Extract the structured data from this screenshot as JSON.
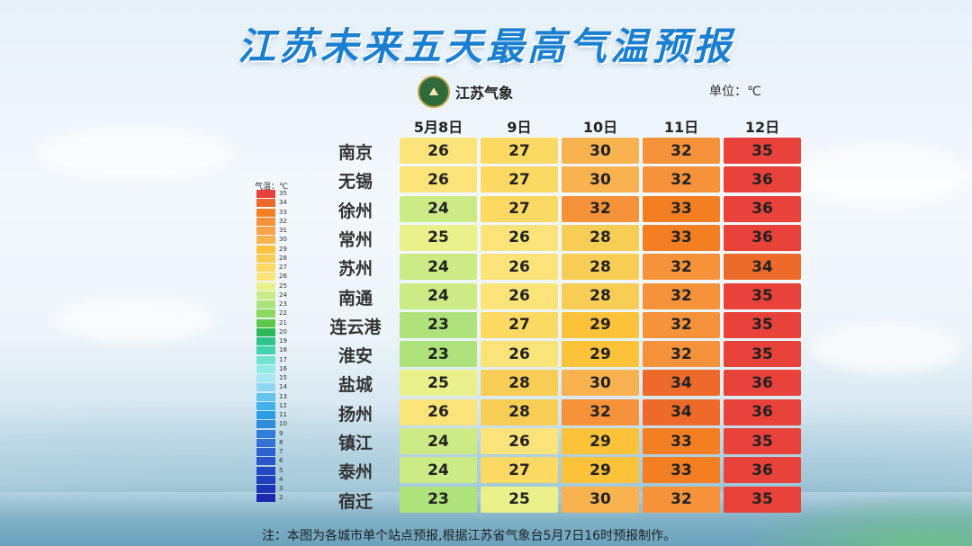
{
  "title": "江苏未来五天最高气温预报",
  "logo": {
    "text": "江苏气象",
    "icon": "weather-bureau-emblem-icon"
  },
  "unit": "单位：℃",
  "columns": [
    "5月8日",
    "9日",
    "10日",
    "11日",
    "12日"
  ],
  "rows": [
    {
      "city": "南京",
      "temps": [
        26,
        27,
        30,
        32,
        35
      ]
    },
    {
      "city": "无锡",
      "temps": [
        26,
        27,
        30,
        32,
        36
      ]
    },
    {
      "city": "徐州",
      "temps": [
        24,
        27,
        32,
        33,
        36
      ]
    },
    {
      "city": "常州",
      "temps": [
        25,
        26,
        28,
        33,
        36
      ]
    },
    {
      "city": "苏州",
      "temps": [
        24,
        26,
        28,
        32,
        34
      ]
    },
    {
      "city": "南通",
      "temps": [
        24,
        26,
        28,
        32,
        35
      ]
    },
    {
      "city": "连云港",
      "temps": [
        23,
        27,
        29,
        32,
        35
      ]
    },
    {
      "city": "淮安",
      "temps": [
        23,
        26,
        29,
        32,
        35
      ]
    },
    {
      "city": "盐城",
      "temps": [
        25,
        28,
        30,
        34,
        36
      ]
    },
    {
      "city": "扬州",
      "temps": [
        26,
        28,
        32,
        34,
        36
      ]
    },
    {
      "city": "镇江",
      "temps": [
        24,
        26,
        29,
        33,
        35
      ]
    },
    {
      "city": "泰州",
      "temps": [
        24,
        27,
        29,
        33,
        36
      ]
    },
    {
      "city": "宿迁",
      "temps": [
        23,
        25,
        30,
        32,
        35
      ]
    }
  ],
  "legend": {
    "title": "气温：℃",
    "items": [
      {
        "label": "35",
        "color": "#e8423a"
      },
      {
        "label": "34",
        "color": "#ee6a2a"
      },
      {
        "label": "33",
        "color": "#f47e22"
      },
      {
        "label": "32",
        "color": "#f5923a"
      },
      {
        "label": "31",
        "color": "#f7a34a"
      },
      {
        "label": "30",
        "color": "#f8b350"
      },
      {
        "label": "29",
        "color": "#fbc23a"
      },
      {
        "label": "28",
        "color": "#f8cd55"
      },
      {
        "label": "27",
        "color": "#fbd962"
      },
      {
        "label": "26",
        "color": "#fae47a"
      },
      {
        "label": "25",
        "color": "#eaf08a"
      },
      {
        "label": "24",
        "color": "#cdeb85"
      },
      {
        "label": "23",
        "color": "#ade37a"
      },
      {
        "label": "22",
        "color": "#8ed860"
      },
      {
        "label": "21",
        "color": "#5cc84a"
      },
      {
        "label": "20",
        "color": "#2fb85a"
      },
      {
        "label": "19",
        "color": "#2ec48a"
      },
      {
        "label": "18",
        "color": "#3fd3b0"
      },
      {
        "label": "17",
        "color": "#6fe3d0"
      },
      {
        "label": "16",
        "color": "#93ece4"
      },
      {
        "label": "15",
        "color": "#a6e7f2"
      },
      {
        "label": "14",
        "color": "#8fd6f2"
      },
      {
        "label": "13",
        "color": "#62c4ef"
      },
      {
        "label": "12",
        "color": "#3fb2ea"
      },
      {
        "label": "11",
        "color": "#2a9ee2"
      },
      {
        "label": "10",
        "color": "#2b8cdc"
      },
      {
        "label": "9",
        "color": "#2f7fd8"
      },
      {
        "label": "8",
        "color": "#3570d4"
      },
      {
        "label": "7",
        "color": "#2f62cf"
      },
      {
        "label": "6",
        "color": "#2855c8"
      },
      {
        "label": "5",
        "color": "#2349c2"
      },
      {
        "label": "4",
        "color": "#1f3fbe"
      },
      {
        "label": "3",
        "color": "#1c33b8"
      },
      {
        "label": "2",
        "color": "#1a28b2"
      }
    ]
  },
  "note": "注：本图为各城市单个站点预报,根据江苏省气象台5月7日16时预报制作。"
}
